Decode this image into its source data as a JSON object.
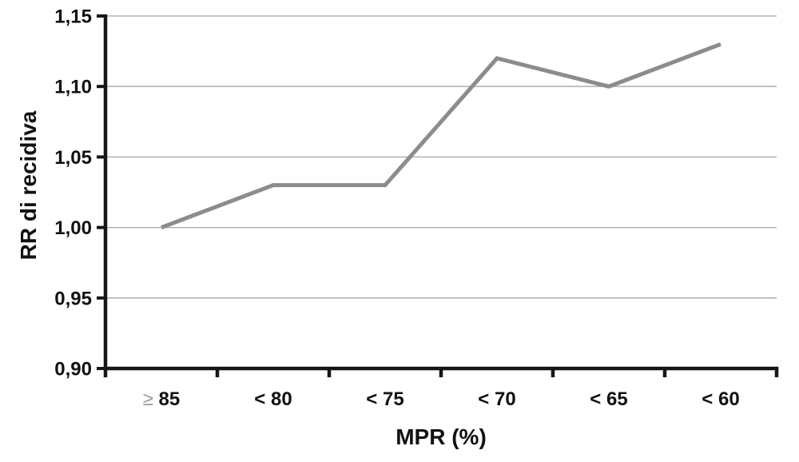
{
  "chart_data": {
    "type": "line",
    "categories": [
      "≥ 85",
      "< 80",
      "< 75",
      "< 70",
      "< 65",
      "< 60"
    ],
    "values": [
      1.0,
      1.03,
      1.03,
      1.12,
      1.1,
      1.13
    ],
    "title": "",
    "xlabel": "MPR (%)",
    "ylabel": "RR di recidiva",
    "ylim": [
      0.9,
      1.15
    ],
    "ytick_step": 0.05,
    "ytick_labels": [
      "0,90",
      "0,95",
      "1,00",
      "1,05",
      "1,10",
      "1,15"
    ],
    "grid": "horizontal",
    "legend": "none",
    "line_color": "#8c8c8c",
    "grid_color": "#a6a6a6",
    "axis_color": "#161616",
    "ge_symbol_color": "#9a9a9a"
  }
}
